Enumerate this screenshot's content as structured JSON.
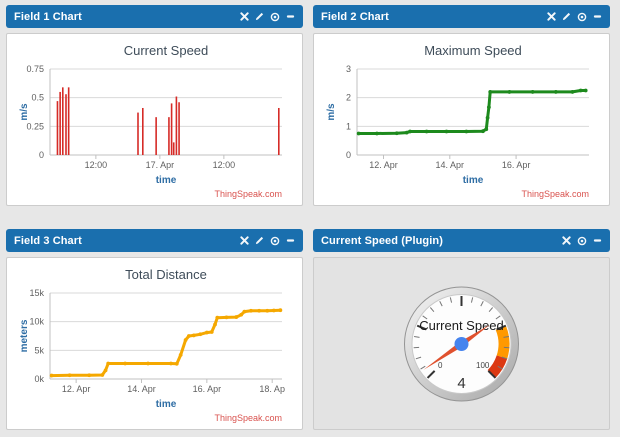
{
  "colors": {
    "page_bg": "#e7e7e7",
    "header_bg": "#1a6fae",
    "header_text": "#ffffff",
    "panel_bg": "#ffffff",
    "plugin_bg": "#e3e3e3",
    "panel_border": "#cccccc",
    "grid": "#d9d9d9",
    "axis": "#c0c0c0",
    "tick_text": "#606060",
    "axis_title": "#2e6da4",
    "chart_title": "#3e4c59",
    "watermark_color": "#d9534f"
  },
  "widgets": {
    "field1_chart": {
      "title": "Field 1 Chart"
    },
    "field2_chart": {
      "title": "Field 2 Chart"
    },
    "field3_chart": {
      "title": "Field 3 Chart"
    },
    "plugin": {
      "title": "Current Speed (Plugin)"
    }
  },
  "chart_data": [
    {
      "type": "bar",
      "title": "Current Speed",
      "xlabel": "time",
      "ylabel": "m/s",
      "color": "#d62b27",
      "watermark": "ThingSpeak.com",
      "ylim": [
        0,
        0.75
      ],
      "yticks": [
        {
          "v": 0,
          "label": "0"
        },
        {
          "v": 0.25,
          "label": "0.25"
        },
        {
          "v": 0.5,
          "label": "0.5"
        },
        {
          "v": 0.75,
          "label": "0.75"
        }
      ],
      "x_unit": "hours since 16 Apr 00:00 (estimated from ticks)",
      "xlim": [
        3.4,
        46.9
      ],
      "xticks": [
        {
          "x": 12,
          "label": "12:00"
        },
        {
          "x": 24,
          "label": "17. Apr"
        },
        {
          "x": 36,
          "label": "12:00"
        }
      ],
      "grid": true,
      "legend": false,
      "points": [
        {
          "x": 4.8,
          "y": 0.47
        },
        {
          "x": 5.3,
          "y": 0.55
        },
        {
          "x": 5.8,
          "y": 0.59
        },
        {
          "x": 6.4,
          "y": 0.53
        },
        {
          "x": 6.9,
          "y": 0.59
        },
        {
          "x": 19.9,
          "y": 0.37
        },
        {
          "x": 20.8,
          "y": 0.41
        },
        {
          "x": 23.3,
          "y": 0.33
        },
        {
          "x": 25.7,
          "y": 0.33
        },
        {
          "x": 26.2,
          "y": 0.45
        },
        {
          "x": 26.6,
          "y": 0.11
        },
        {
          "x": 27.1,
          "y": 0.51
        },
        {
          "x": 27.6,
          "y": 0.46
        },
        {
          "x": 46.3,
          "y": 0.41
        }
      ]
    },
    {
      "type": "line",
      "title": "Maximum Speed",
      "xlabel": "time",
      "ylabel": "m/s",
      "color": "#1d8a1d",
      "watermark": "ThingSpeak.com",
      "ylim": [
        0,
        3
      ],
      "yticks": [
        {
          "v": 0,
          "label": "0"
        },
        {
          "v": 1,
          "label": "1"
        },
        {
          "v": 2,
          "label": "2"
        },
        {
          "v": 3,
          "label": "3"
        }
      ],
      "x_unit": "day of April (estimated from ticks)",
      "xlim": [
        11.2,
        18.2
      ],
      "xticks": [
        {
          "x": 12,
          "label": "12. Apr"
        },
        {
          "x": 14,
          "label": "14. Apr"
        },
        {
          "x": 16,
          "label": "16. Apr"
        }
      ],
      "grid": true,
      "legend": false,
      "points": [
        {
          "x": 11.25,
          "y": 0.75
        },
        {
          "x": 11.8,
          "y": 0.75
        },
        {
          "x": 12.4,
          "y": 0.76
        },
        {
          "x": 12.7,
          "y": 0.78
        },
        {
          "x": 12.8,
          "y": 0.82
        },
        {
          "x": 13.3,
          "y": 0.82
        },
        {
          "x": 13.9,
          "y": 0.82
        },
        {
          "x": 14.5,
          "y": 0.82
        },
        {
          "x": 15.0,
          "y": 0.83
        },
        {
          "x": 15.1,
          "y": 0.9
        },
        {
          "x": 15.14,
          "y": 1.3
        },
        {
          "x": 15.18,
          "y": 1.67
        },
        {
          "x": 15.22,
          "y": 2.2
        },
        {
          "x": 15.8,
          "y": 2.2
        },
        {
          "x": 16.5,
          "y": 2.2
        },
        {
          "x": 17.2,
          "y": 2.2
        },
        {
          "x": 17.7,
          "y": 2.2
        },
        {
          "x": 17.95,
          "y": 2.25
        },
        {
          "x": 18.1,
          "y": 2.25
        }
      ]
    },
    {
      "type": "line",
      "title": "Total Distance",
      "xlabel": "time",
      "ylabel": "meters",
      "color": "#f5a800",
      "watermark": "ThingSpeak.com",
      "ylim": [
        0,
        15000
      ],
      "yticks": [
        {
          "v": 0,
          "label": "0k"
        },
        {
          "v": 5000,
          "label": "5k"
        },
        {
          "v": 10000,
          "label": "10k"
        },
        {
          "v": 15000,
          "label": "15k"
        }
      ],
      "x_unit": "day of April (estimated from ticks)",
      "xlim": [
        11.2,
        18.3
      ],
      "xticks": [
        {
          "x": 12,
          "label": "12. Apr"
        },
        {
          "x": 14,
          "label": "14. Apr"
        },
        {
          "x": 16,
          "label": "16. Apr"
        },
        {
          "x": 18,
          "label": "18. Ap"
        }
      ],
      "grid": true,
      "legend": false,
      "points": [
        {
          "x": 11.25,
          "y": 600
        },
        {
          "x": 11.8,
          "y": 650
        },
        {
          "x": 12.4,
          "y": 650
        },
        {
          "x": 12.8,
          "y": 700
        },
        {
          "x": 12.9,
          "y": 1500
        },
        {
          "x": 12.98,
          "y": 2700
        },
        {
          "x": 13.5,
          "y": 2700
        },
        {
          "x": 14.2,
          "y": 2700
        },
        {
          "x": 14.9,
          "y": 2700
        },
        {
          "x": 15.08,
          "y": 2650
        },
        {
          "x": 15.2,
          "y": 4200
        },
        {
          "x": 15.35,
          "y": 6800
        },
        {
          "x": 15.45,
          "y": 7500
        },
        {
          "x": 15.6,
          "y": 7600
        },
        {
          "x": 15.8,
          "y": 7800
        },
        {
          "x": 16.0,
          "y": 8100
        },
        {
          "x": 16.15,
          "y": 8200
        },
        {
          "x": 16.25,
          "y": 9500
        },
        {
          "x": 16.32,
          "y": 10700
        },
        {
          "x": 16.6,
          "y": 10750
        },
        {
          "x": 16.9,
          "y": 10800
        },
        {
          "x": 17.05,
          "y": 11200
        },
        {
          "x": 17.15,
          "y": 11750
        },
        {
          "x": 17.35,
          "y": 11900
        },
        {
          "x": 17.6,
          "y": 11900
        },
        {
          "x": 17.85,
          "y": 11900
        },
        {
          "x": 18.05,
          "y": 11950
        },
        {
          "x": 18.25,
          "y": 12000
        }
      ]
    },
    {
      "type": "gauge",
      "title": "Current Speed",
      "value": 4,
      "value_display": "4",
      "min": 0,
      "max": 100,
      "min_label": "0",
      "max_label": "100",
      "zones": [
        {
          "from": 75,
          "to": 90,
          "color": "#ff9900"
        },
        {
          "from": 90,
          "to": 100,
          "color": "#dc3912"
        }
      ],
      "needle_color": "#e0512e",
      "hub_color": "#4684ee"
    }
  ]
}
